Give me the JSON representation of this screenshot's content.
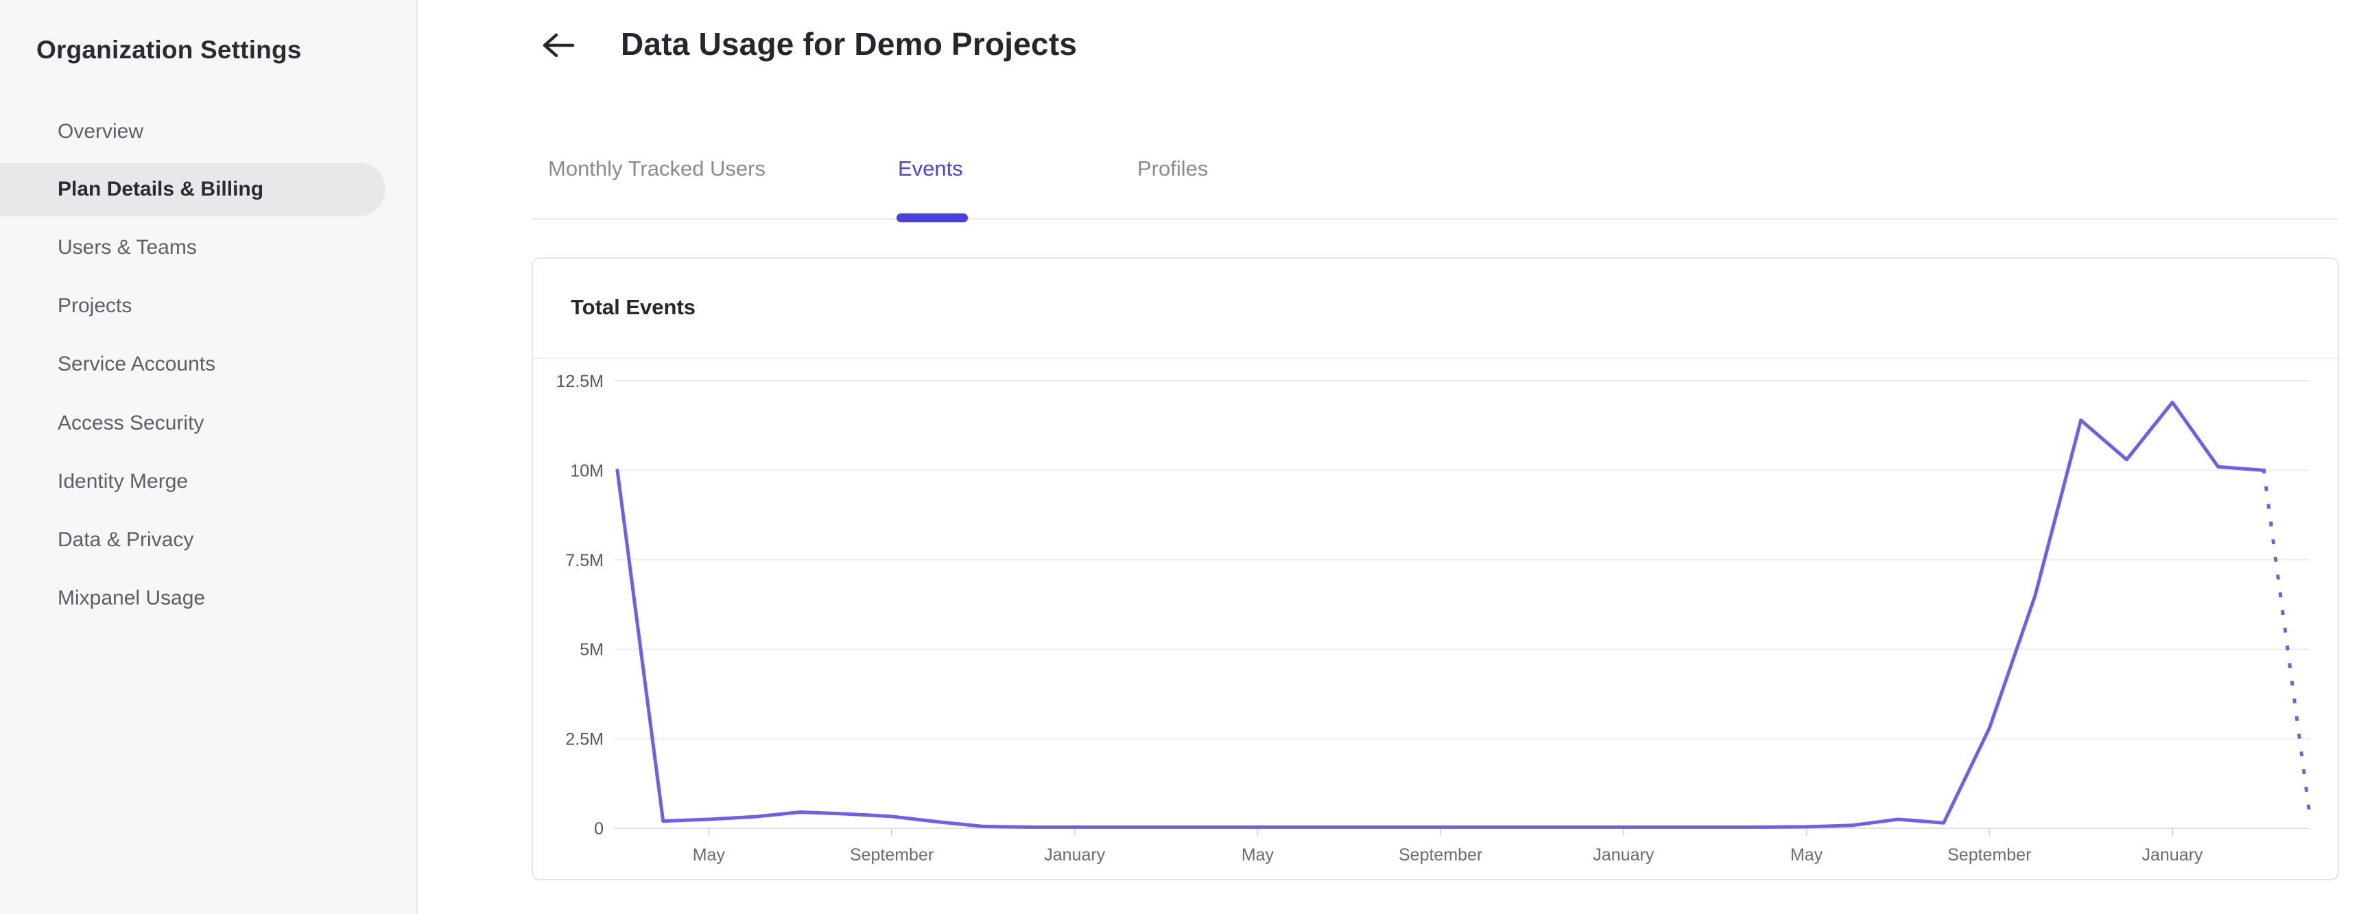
{
  "sidebar": {
    "title": "Organization Settings",
    "items": [
      {
        "label": "Overview",
        "selected": false
      },
      {
        "label": "Plan Details & Billing",
        "selected": true
      },
      {
        "label": "Users & Teams",
        "selected": false
      },
      {
        "label": "Projects",
        "selected": false
      },
      {
        "label": "Service Accounts",
        "selected": false
      },
      {
        "label": "Access Security",
        "selected": false
      },
      {
        "label": "Identity Merge",
        "selected": false
      },
      {
        "label": "Data & Privacy",
        "selected": false
      },
      {
        "label": "Mixpanel Usage",
        "selected": false
      }
    ]
  },
  "header": {
    "back_icon": "left-arrow-icon",
    "title": "Data Usage for Demo Projects"
  },
  "tabs": {
    "items": [
      {
        "label": "Monthly Tracked Users",
        "active": false
      },
      {
        "label": "Events",
        "active": true
      },
      {
        "label": "Profiles",
        "active": false
      }
    ]
  },
  "card": {
    "title": "Total Events"
  },
  "colors": {
    "accent": "#4c40e0",
    "line": "#6f5eec",
    "sidebar_selected_bg": "#e8e8eb"
  },
  "chart_data": {
    "type": "line",
    "title": "Total Events",
    "xlabel": "",
    "ylabel": "",
    "unit": "events",
    "grid": "horizontal",
    "legend": false,
    "ylim_millions": [
      0,
      12.5
    ],
    "y_ticks": [
      {
        "value_millions": 0,
        "label": "0"
      },
      {
        "value_millions": 2.5,
        "label": "2.5M"
      },
      {
        "value_millions": 5,
        "label": "5M"
      },
      {
        "value_millions": 7.5,
        "label": "7.5M"
      },
      {
        "value_millions": 10,
        "label": "10M"
      },
      {
        "value_millions": 12.5,
        "label": "12.5M"
      }
    ],
    "x_ticks": [
      {
        "index": 2,
        "label": "May"
      },
      {
        "index": 6,
        "label": "September"
      },
      {
        "index": 10,
        "label": "January"
      },
      {
        "index": 14,
        "label": "May"
      },
      {
        "index": 18,
        "label": "September"
      },
      {
        "index": 22,
        "label": "January"
      },
      {
        "index": 26,
        "label": "May"
      },
      {
        "index": 30,
        "label": "September"
      },
      {
        "index": 34,
        "label": "January"
      }
    ],
    "series": [
      {
        "name": "Total Events",
        "color": "#6f5eec",
        "dashed_from_index": 36,
        "points": [
          {
            "month": "March",
            "value_millions": 10
          },
          {
            "month": "April",
            "value_millions": 0.2
          },
          {
            "month": "May",
            "value_millions": 0.25
          },
          {
            "month": "June",
            "value_millions": 0.32
          },
          {
            "month": "July",
            "value_millions": 0.45
          },
          {
            "month": "August",
            "value_millions": 0.4
          },
          {
            "month": "September",
            "value_millions": 0.33
          },
          {
            "month": "October",
            "value_millions": 0.18
          },
          {
            "month": "November",
            "value_millions": 0.05
          },
          {
            "month": "December",
            "value_millions": 0.03
          },
          {
            "month": "January",
            "value_millions": 0.03
          },
          {
            "month": "February",
            "value_millions": 0.03
          },
          {
            "month": "March",
            "value_millions": 0.03
          },
          {
            "month": "April",
            "value_millions": 0.03
          },
          {
            "month": "May",
            "value_millions": 0.03
          },
          {
            "month": "June",
            "value_millions": 0.03
          },
          {
            "month": "July",
            "value_millions": 0.03
          },
          {
            "month": "August",
            "value_millions": 0.03
          },
          {
            "month": "September",
            "value_millions": 0.03
          },
          {
            "month": "October",
            "value_millions": 0.03
          },
          {
            "month": "November",
            "value_millions": 0.03
          },
          {
            "month": "December",
            "value_millions": 0.03
          },
          {
            "month": "January",
            "value_millions": 0.03
          },
          {
            "month": "February",
            "value_millions": 0.03
          },
          {
            "month": "March",
            "value_millions": 0.03
          },
          {
            "month": "April",
            "value_millions": 0.03
          },
          {
            "month": "May",
            "value_millions": 0.04
          },
          {
            "month": "June",
            "value_millions": 0.08
          },
          {
            "month": "July",
            "value_millions": 0.25
          },
          {
            "month": "August",
            "value_millions": 0.15
          },
          {
            "month": "September",
            "value_millions": 2.8
          },
          {
            "month": "October",
            "value_millions": 6.5
          },
          {
            "month": "November",
            "value_millions": 11.4
          },
          {
            "month": "December",
            "value_millions": 10.3
          },
          {
            "month": "January",
            "value_millions": 11.9
          },
          {
            "month": "February",
            "value_millions": 10.1
          },
          {
            "month": "March",
            "value_millions": 10.0
          },
          {
            "month": "April",
            "value_millions": 0.4
          }
        ]
      }
    ]
  }
}
